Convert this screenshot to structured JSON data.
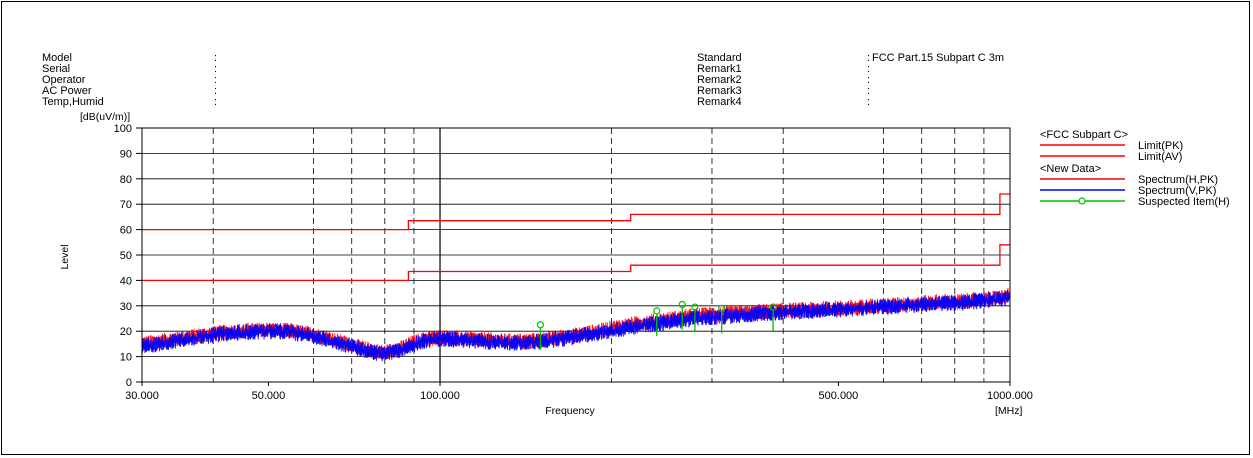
{
  "header": {
    "left": [
      {
        "label": "Model",
        "value": ""
      },
      {
        "label": "Serial",
        "value": ""
      },
      {
        "label": "Operator",
        "value": ""
      },
      {
        "label": "AC Power",
        "value": ""
      },
      {
        "label": "Temp,Humid",
        "value": ""
      }
    ],
    "right": [
      {
        "label": "Standard",
        "value": "FCC Part.15 Subpart C 3m"
      },
      {
        "label": "Remark1",
        "value": ""
      },
      {
        "label": "Remark2",
        "value": ""
      },
      {
        "label": "Remark3",
        "value": ""
      },
      {
        "label": "Remark4",
        "value": ""
      }
    ],
    "separator": ":"
  },
  "legend": {
    "group1_title": "<FCC Subpart C>",
    "group2_title": "<New Data>",
    "items": [
      {
        "label": "Limit(PK)",
        "color": "#ff0000"
      },
      {
        "label": "Limit(AV)",
        "color": "#ff0000"
      },
      {
        "label": "Spectrum(H,PK)",
        "color": "#ff0000"
      },
      {
        "label": "Spectrum(V,PK)",
        "color": "#0000ff"
      },
      {
        "label": "Suspected Item(H)",
        "color": "#00c000"
      }
    ]
  },
  "chart_data": {
    "type": "line",
    "xlabel": "Frequency",
    "ylabel": "Level",
    "yunit": "[dB(uV/m)]",
    "xunit": "[MHz]",
    "xscale": "log",
    "xlim": [
      30,
      1000
    ],
    "ylim": [
      0,
      100
    ],
    "yticks": [
      0,
      10,
      20,
      30,
      40,
      50,
      60,
      70,
      80,
      90,
      100
    ],
    "xtick_labels": [
      {
        "value": 30,
        "label": "30.000"
      },
      {
        "value": 50,
        "label": "50.000"
      },
      {
        "value": 100,
        "label": "100.000"
      },
      {
        "value": 500,
        "label": "500.000"
      },
      {
        "value": 1000,
        "label": "1000.000"
      }
    ],
    "xgrid_minor": [
      40,
      60,
      70,
      80,
      90,
      200,
      300,
      400,
      600,
      700,
      800,
      900
    ],
    "series": [
      {
        "name": "Limit(PK)",
        "color": "#ff0000",
        "step": true,
        "x": [
          30,
          88,
          88,
          216,
          216,
          960,
          960,
          1000
        ],
        "y": [
          60,
          60,
          63.5,
          63.5,
          66,
          66,
          74,
          74
        ]
      },
      {
        "name": "Limit(AV)",
        "color": "#ff0000",
        "step": true,
        "x": [
          30,
          88,
          88,
          216,
          216,
          960,
          960,
          1000
        ],
        "y": [
          40,
          40,
          43.5,
          43.5,
          46,
          46,
          54,
          54
        ]
      },
      {
        "name": "Spectrum(H,PK)",
        "color": "#ff0000",
        "x": [
          30,
          35,
          40,
          45,
          50,
          55,
          60,
          65,
          70,
          75,
          80,
          85,
          90,
          95,
          100,
          110,
          120,
          130,
          140,
          150,
          170,
          190,
          210,
          230,
          250,
          280,
          300,
          330,
          360,
          400,
          450,
          500,
          550,
          600,
          650,
          700,
          750,
          800,
          850,
          900,
          950,
          1000
        ],
        "y": [
          15,
          17,
          19,
          20,
          20.5,
          20,
          18.5,
          16.5,
          14.5,
          12.5,
          11.5,
          13,
          15.5,
          17,
          17.5,
          17,
          16.5,
          16,
          16,
          16.5,
          18,
          20,
          22,
          23.5,
          24.5,
          26,
          26.5,
          27,
          27.5,
          28,
          28.5,
          29,
          29.5,
          30,
          30.5,
          31,
          31.5,
          31.5,
          32,
          32.5,
          33,
          34
        ]
      },
      {
        "name": "Spectrum(V,PK)",
        "color": "#0000ff",
        "x": [
          30,
          35,
          40,
          45,
          50,
          55,
          60,
          65,
          70,
          75,
          80,
          85,
          90,
          95,
          100,
          110,
          120,
          130,
          140,
          150,
          170,
          190,
          210,
          230,
          250,
          280,
          300,
          330,
          360,
          400,
          450,
          500,
          550,
          600,
          650,
          700,
          750,
          800,
          850,
          900,
          950,
          1000
        ],
        "y": [
          14,
          16.5,
          18.5,
          19.5,
          20,
          19.5,
          18,
          16,
          14,
          12,
          11,
          12.5,
          15,
          16.5,
          17,
          16.5,
          16,
          15.5,
          15.5,
          16,
          17.5,
          19.5,
          21,
          22.5,
          23.5,
          25,
          25.5,
          26,
          27,
          27.5,
          28,
          28.5,
          29,
          29.5,
          30,
          30.5,
          31,
          31,
          31.5,
          32,
          32.5,
          33.5
        ]
      },
      {
        "name": "Suspected Item(H)",
        "color": "#00c000",
        "markers": true,
        "x": [
          150,
          240,
          266,
          280,
          312,
          384
        ],
        "y": [
          22.5,
          28,
          30.5,
          29.5,
          29,
          29.5
        ]
      }
    ]
  }
}
